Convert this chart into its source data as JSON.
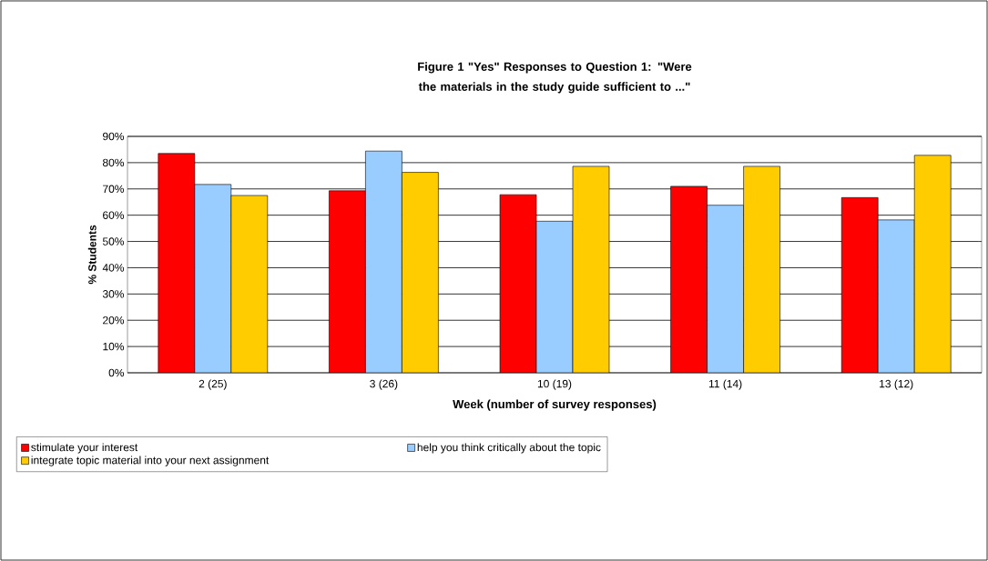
{
  "chart_data": {
    "type": "bar",
    "title": "Figure  1   \"Yes\" Responses to Question 1: \"Were the materials in the study guide sufficient to ...\"",
    "xlabel": "Week (number of survey responses)",
    "ylabel": "% Students",
    "categories": [
      "2 (25)",
      "3 (26)",
      "10 (19)",
      "11 (14)",
      "13 (12)"
    ],
    "series": [
      {
        "name": "stimulate your interest",
        "color": "#ff0000",
        "values": [
          83.5,
          69.3,
          67.8,
          71,
          66.7
        ]
      },
      {
        "name": "help you think critically about the topic",
        "color": "#99ccff",
        "values": [
          71.7,
          84.4,
          57.7,
          63.8,
          58.2
        ]
      },
      {
        "name": "integrate topic material into your next assignment",
        "color": "#ffcc00",
        "values": [
          67.5,
          76.3,
          78.6,
          78.6,
          82.8
        ]
      }
    ],
    "ylim": [
      0,
      90
    ],
    "yticks": [
      {
        "value": 0,
        "label": "0%"
      },
      {
        "value": 10,
        "label": "10%"
      },
      {
        "value": 20,
        "label": "20%"
      },
      {
        "value": 30,
        "label": "30%"
      },
      {
        "value": 40,
        "label": "40%"
      },
      {
        "value": 50,
        "label": "50%"
      },
      {
        "value": 60,
        "label": "60%"
      },
      {
        "value": 70,
        "label": "70%"
      },
      {
        "value": 80,
        "label": "80%"
      },
      {
        "value": 90,
        "label": "90%"
      }
    ],
    "grid": "y",
    "legend": "bottom"
  }
}
